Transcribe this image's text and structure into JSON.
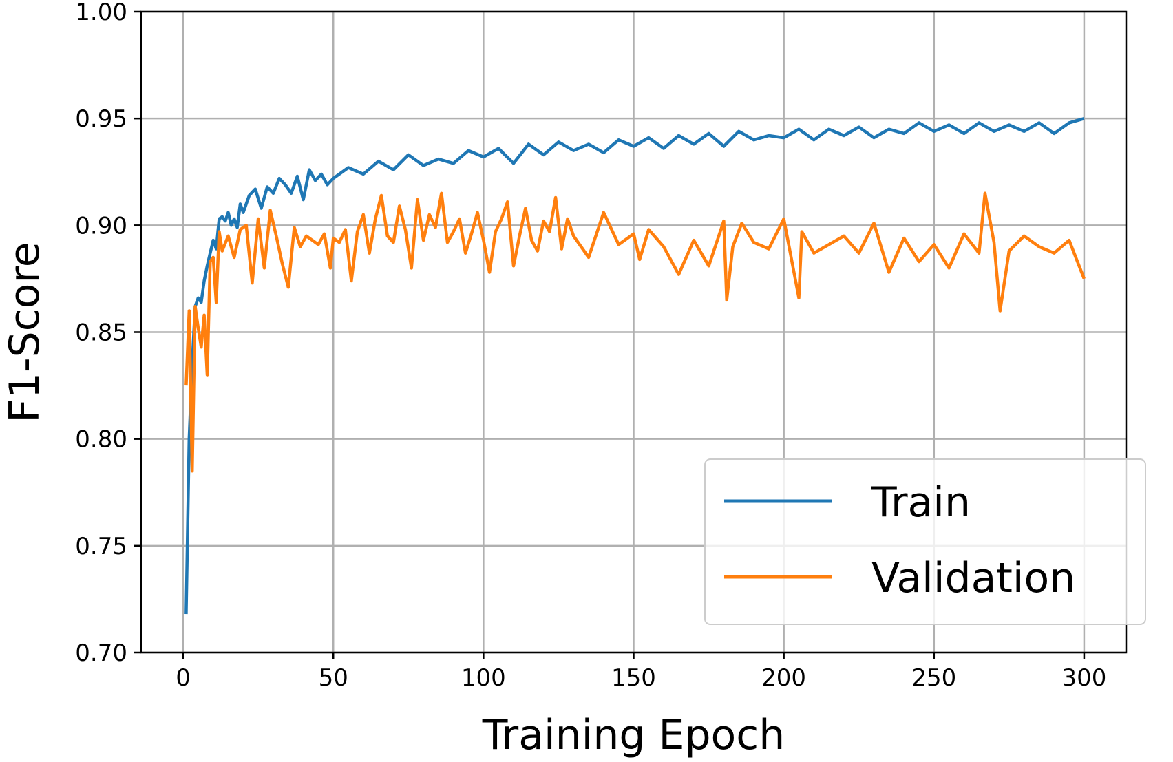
{
  "chart_data": {
    "type": "line",
    "xlabel": "Training Epoch",
    "ylabel": "F1-Score",
    "xlim": [
      -14,
      314
    ],
    "ylim": [
      0.7,
      1.0
    ],
    "xticks": [
      0,
      50,
      100,
      150,
      200,
      250,
      300
    ],
    "xtick_labels": [
      "0",
      "50",
      "100",
      "150",
      "200",
      "250",
      "300"
    ],
    "yticks": [
      0.7,
      0.75,
      0.8,
      0.85,
      0.9,
      0.95,
      1.0
    ],
    "ytick_labels": [
      "0.70",
      "0.75",
      "0.80",
      "0.85",
      "0.90",
      "0.95",
      "1.00"
    ],
    "grid": true,
    "legend_position": "bottom-right",
    "series": [
      {
        "name": "Train",
        "color": "#1f77b4",
        "x": [
          1,
          2,
          3,
          4,
          5,
          6,
          7,
          8,
          9,
          10,
          11,
          12,
          13,
          14,
          15,
          16,
          17,
          18,
          19,
          20,
          22,
          24,
          26,
          28,
          30,
          32,
          34,
          36,
          38,
          40,
          42,
          44,
          46,
          48,
          50,
          55,
          60,
          65,
          70,
          75,
          80,
          85,
          90,
          95,
          100,
          105,
          110,
          115,
          120,
          125,
          130,
          135,
          140,
          145,
          150,
          155,
          160,
          165,
          170,
          175,
          180,
          185,
          190,
          195,
          200,
          205,
          210,
          215,
          220,
          225,
          230,
          235,
          240,
          245,
          250,
          255,
          260,
          265,
          270,
          275,
          280,
          285,
          290,
          295,
          300
        ],
        "y": [
          0.718,
          0.8,
          0.835,
          0.862,
          0.866,
          0.864,
          0.874,
          0.881,
          0.887,
          0.893,
          0.889,
          0.903,
          0.904,
          0.902,
          0.906,
          0.9,
          0.903,
          0.899,
          0.91,
          0.906,
          0.914,
          0.917,
          0.908,
          0.918,
          0.915,
          0.922,
          0.919,
          0.915,
          0.923,
          0.912,
          0.926,
          0.921,
          0.924,
          0.919,
          0.922,
          0.927,
          0.924,
          0.93,
          0.926,
          0.933,
          0.928,
          0.931,
          0.929,
          0.935,
          0.932,
          0.936,
          0.929,
          0.938,
          0.933,
          0.939,
          0.935,
          0.938,
          0.934,
          0.94,
          0.937,
          0.941,
          0.936,
          0.942,
          0.938,
          0.943,
          0.937,
          0.944,
          0.94,
          0.942,
          0.941,
          0.945,
          0.94,
          0.945,
          0.942,
          0.946,
          0.941,
          0.945,
          0.943,
          0.948,
          0.944,
          0.947,
          0.943,
          0.948,
          0.944,
          0.947,
          0.944,
          0.948,
          0.943,
          0.948,
          0.95
        ]
      },
      {
        "name": "Validation",
        "color": "#ff7f0e",
        "x": [
          1,
          2,
          3,
          4,
          5,
          6,
          7,
          8,
          9,
          10,
          11,
          12,
          13,
          15,
          17,
          19,
          21,
          23,
          25,
          27,
          29,
          31,
          33,
          35,
          37,
          39,
          41,
          43,
          45,
          47,
          49,
          50,
          52,
          54,
          56,
          58,
          60,
          62,
          64,
          66,
          68,
          70,
          72,
          74,
          76,
          78,
          80,
          82,
          84,
          86,
          88,
          90,
          92,
          94,
          96,
          98,
          100,
          102,
          104,
          106,
          108,
          110,
          112,
          114,
          116,
          118,
          120,
          122,
          124,
          126,
          128,
          130,
          135,
          140,
          145,
          150,
          152,
          155,
          160,
          165,
          170,
          175,
          180,
          181,
          183,
          186,
          190,
          195,
          200,
          205,
          206,
          210,
          215,
          220,
          225,
          230,
          235,
          240,
          245,
          250,
          255,
          260,
          265,
          267,
          270,
          272,
          275,
          280,
          285,
          290,
          295,
          300
        ],
        "y": [
          0.825,
          0.86,
          0.785,
          0.862,
          0.852,
          0.843,
          0.858,
          0.83,
          0.883,
          0.885,
          0.864,
          0.897,
          0.888,
          0.895,
          0.885,
          0.898,
          0.9,
          0.873,
          0.903,
          0.88,
          0.907,
          0.895,
          0.882,
          0.871,
          0.899,
          0.89,
          0.895,
          0.893,
          0.891,
          0.896,
          0.88,
          0.894,
          0.892,
          0.898,
          0.874,
          0.897,
          0.905,
          0.887,
          0.903,
          0.914,
          0.895,
          0.892,
          0.909,
          0.898,
          0.88,
          0.912,
          0.893,
          0.905,
          0.899,
          0.915,
          0.892,
          0.897,
          0.903,
          0.887,
          0.896,
          0.906,
          0.893,
          0.878,
          0.897,
          0.903,
          0.911,
          0.881,
          0.895,
          0.908,
          0.893,
          0.888,
          0.902,
          0.897,
          0.913,
          0.889,
          0.903,
          0.895,
          0.885,
          0.906,
          0.891,
          0.896,
          0.884,
          0.898,
          0.89,
          0.877,
          0.893,
          0.881,
          0.902,
          0.865,
          0.89,
          0.901,
          0.892,
          0.889,
          0.903,
          0.866,
          0.897,
          0.887,
          0.891,
          0.895,
          0.887,
          0.901,
          0.878,
          0.894,
          0.883,
          0.891,
          0.88,
          0.896,
          0.887,
          0.915,
          0.892,
          0.86,
          0.888,
          0.895,
          0.89,
          0.887,
          0.893,
          0.875
        ]
      }
    ]
  }
}
